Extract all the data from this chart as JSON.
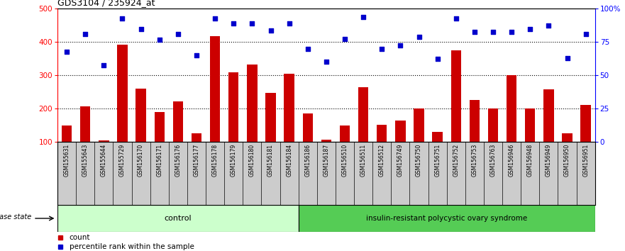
{
  "title": "GDS3104 / 235924_at",
  "samples": [
    "GSM155631",
    "GSM155643",
    "GSM155644",
    "GSM155729",
    "GSM156170",
    "GSM156171",
    "GSM156176",
    "GSM156177",
    "GSM156178",
    "GSM156179",
    "GSM156180",
    "GSM156181",
    "GSM156184",
    "GSM156186",
    "GSM156187",
    "GSM156510",
    "GSM156511",
    "GSM156512",
    "GSM156749",
    "GSM156750",
    "GSM156751",
    "GSM156752",
    "GSM156753",
    "GSM156763",
    "GSM156946",
    "GSM156948",
    "GSM156949",
    "GSM156950",
    "GSM156951"
  ],
  "counts": [
    150,
    207,
    105,
    393,
    260,
    190,
    222,
    125,
    418,
    310,
    333,
    248,
    305,
    185,
    107,
    150,
    265,
    152,
    165,
    200,
    130,
    375,
    225,
    200,
    300,
    200,
    258,
    125,
    210
  ],
  "percentile": [
    370,
    425,
    330,
    470,
    440,
    408,
    425,
    360,
    470,
    455,
    457,
    435,
    455,
    380,
    340,
    410,
    475,
    380,
    390,
    415,
    350,
    470,
    430,
    430,
    430,
    440,
    450,
    352,
    425
  ],
  "group_control_count": 13,
  "bar_color": "#cc0000",
  "dot_color": "#0000cc",
  "control_bg": "#ccffcc",
  "pcos_bg": "#55cc55",
  "xtick_bg": "#cccccc",
  "control_label": "control",
  "pcos_label": "insulin-resistant polycystic ovary syndrome",
  "disease_state_label": "disease state",
  "legend_count": "count",
  "legend_percentile": "percentile rank within the sample",
  "ylim_left": [
    100,
    500
  ],
  "ylim_right": [
    0,
    100
  ],
  "yticks_left": [
    100,
    200,
    300,
    400,
    500
  ],
  "yticks_right": [
    0,
    25,
    50,
    75,
    100
  ],
  "yticklabels_right": [
    "0",
    "25",
    "50",
    "75",
    "100%"
  ]
}
